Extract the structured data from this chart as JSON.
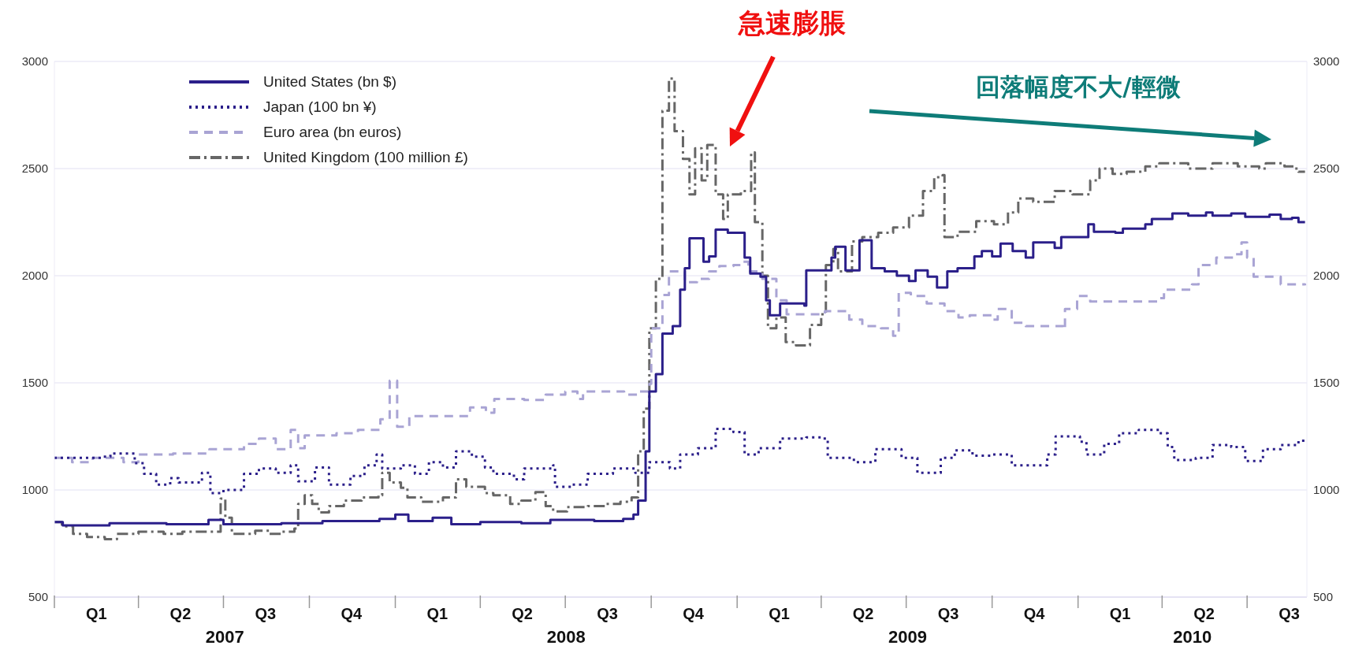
{
  "chart_data": {
    "type": "step",
    "xlim": [
      "2007-01-01",
      "2010-09-03"
    ],
    "xticks": [
      {
        "value": "2007-01-01",
        "label": null
      },
      {
        "value": "2007-02-15",
        "label": "Q1"
      },
      {
        "value": "2007-04-01",
        "label": null
      },
      {
        "value": "2007-05-16",
        "label": "Q2"
      },
      {
        "value": "2007-07-01",
        "label": null
      },
      {
        "value": "2007-08-15",
        "label": "Q3"
      },
      {
        "value": "2007-10-01",
        "label": null
      },
      {
        "value": "2007-11-15",
        "label": "Q4"
      },
      {
        "value": "2008-01-01",
        "label": null
      },
      {
        "value": "2008-02-15",
        "label": "Q1"
      },
      {
        "value": "2008-04-01",
        "label": null
      },
      {
        "value": "2008-05-16",
        "label": "Q2"
      },
      {
        "value": "2008-07-01",
        "label": null
      },
      {
        "value": "2008-08-15",
        "label": "Q3"
      },
      {
        "value": "2008-10-01",
        "label": null
      },
      {
        "value": "2008-11-15",
        "label": "Q4"
      },
      {
        "value": "2009-01-01",
        "label": null
      },
      {
        "value": "2009-02-15",
        "label": "Q1"
      },
      {
        "value": "2009-04-01",
        "label": null
      },
      {
        "value": "2009-05-16",
        "label": "Q2"
      },
      {
        "value": "2009-07-01",
        "label": null
      },
      {
        "value": "2009-08-15",
        "label": "Q3"
      },
      {
        "value": "2009-10-01",
        "label": null
      },
      {
        "value": "2009-11-15",
        "label": "Q4"
      },
      {
        "value": "2010-01-01",
        "label": null
      },
      {
        "value": "2010-02-15",
        "label": "Q1"
      },
      {
        "value": "2010-04-01",
        "label": null
      },
      {
        "value": "2010-05-16",
        "label": "Q2"
      },
      {
        "value": "2010-07-01",
        "label": null
      },
      {
        "value": "2010-08-15",
        "label": "Q3"
      }
    ],
    "ylim": [
      500,
      3000
    ],
    "yticks": [
      500,
      1000,
      1500,
      2000,
      2500,
      3000
    ],
    "y2lim": [
      500,
      3000
    ],
    "y2ticks": [
      500,
      1000,
      1500,
      2000,
      2500,
      3000
    ],
    "grid": "y",
    "legend": "top left",
    "annotations": [
      "急速膨脹",
      "回落幅度不大/輕微",
      "2007",
      "2008",
      "2009",
      "2010"
    ],
    "series": [
      {
        "name": "United States (bn $)",
        "color": "#2b1f8a",
        "line_style": "solid",
        "x": [
          "2007-01-01",
          "2007-01-10",
          "2007-03-01",
          "2007-05-01",
          "2007-06-15",
          "2007-07-01",
          "2007-09-01",
          "2007-10-15",
          "2007-12-15",
          "2008-01-01",
          "2008-01-15",
          "2008-02-10",
          "2008-03-01",
          "2008-04-01",
          "2008-05-15",
          "2008-06-15",
          "2008-08-01",
          "2008-09-01",
          "2008-09-12",
          "2008-09-17",
          "2008-09-25",
          "2008-09-29",
          "2008-10-06",
          "2008-10-13",
          "2008-10-24",
          "2008-11-01",
          "2008-11-06",
          "2008-11-11",
          "2008-11-26",
          "2008-12-02",
          "2008-12-09",
          "2008-12-22",
          "2009-01-09",
          "2009-01-15",
          "2009-01-26",
          "2009-02-01",
          "2009-02-05",
          "2009-02-16",
          "2009-03-14",
          "2009-03-16",
          "2009-04-12",
          "2009-04-16",
          "2009-04-27",
          "2009-05-12",
          "2009-05-25",
          "2009-06-08",
          "2009-06-21",
          "2009-07-04",
          "2009-07-11",
          "2009-07-24",
          "2009-08-03",
          "2009-08-14",
          "2009-08-25",
          "2009-09-12",
          "2009-09-20",
          "2009-10-01",
          "2009-10-10",
          "2009-10-23",
          "2009-11-06",
          "2009-11-14",
          "2009-12-07",
          "2009-12-14",
          "2010-01-12",
          "2010-01-18",
          "2010-02-10",
          "2010-02-18",
          "2010-03-14",
          "2010-03-21",
          "2010-04-12",
          "2010-04-29",
          "2010-05-18",
          "2010-05-25",
          "2010-06-14",
          "2010-06-29",
          "2010-07-25",
          "2010-08-06",
          "2010-08-18",
          "2010-08-25",
          "2010-09-01"
        ],
        "values": [
          850,
          835,
          845,
          840,
          860,
          840,
          845,
          855,
          865,
          885,
          855,
          870,
          840,
          850,
          845,
          860,
          855,
          865,
          885,
          950,
          1180,
          1460,
          1540,
          1730,
          1765,
          1935,
          2035,
          2175,
          2065,
          2090,
          2215,
          2200,
          2085,
          2010,
          1995,
          1885,
          1815,
          1870,
          1860,
          2025,
          2085,
          2135,
          2025,
          2165,
          2035,
          2020,
          2000,
          1975,
          2025,
          1995,
          1945,
          2020,
          2035,
          2090,
          2115,
          2090,
          2150,
          2115,
          2085,
          2155,
          2130,
          2180,
          2240,
          2205,
          2200,
          2220,
          2240,
          2265,
          2290,
          2280,
          2295,
          2280,
          2290,
          2275,
          2285,
          2265,
          2270,
          2250,
          2250
        ]
      },
      {
        "name": "Japan (100 bn ¥)",
        "color": "#2b1f8a",
        "line_style": "dotted",
        "x": [
          "2007-01-01",
          "2007-02-20",
          "2007-03-02",
          "2007-03-28",
          "2007-04-07",
          "2007-04-20",
          "2007-05-05",
          "2007-05-14",
          "2007-06-08",
          "2007-06-17",
          "2007-07-01",
          "2007-07-23",
          "2007-08-08",
          "2007-08-26",
          "2007-09-11",
          "2007-09-19",
          "2007-10-07",
          "2007-10-22",
          "2007-11-14",
          "2007-11-29",
          "2007-12-12",
          "2007-12-18",
          "2008-01-07",
          "2008-01-22",
          "2008-02-06",
          "2008-02-21",
          "2008-03-06",
          "2008-03-23",
          "2008-04-06",
          "2008-04-15",
          "2008-05-07",
          "2008-05-18",
          "2008-06-18",
          "2008-06-20",
          "2008-07-07",
          "2008-07-25",
          "2008-08-21",
          "2008-09-14",
          "2008-09-29",
          "2008-10-21",
          "2008-11-01",
          "2008-11-20",
          "2008-12-09",
          "2008-12-28",
          "2009-01-09",
          "2009-01-24",
          "2009-02-16",
          "2009-03-16",
          "2009-04-01",
          "2009-04-08",
          "2009-05-06",
          "2009-05-29",
          "2009-06-26",
          "2009-07-13",
          "2009-08-07",
          "2009-08-22",
          "2009-09-10",
          "2009-10-01",
          "2009-10-22",
          "2009-11-14",
          "2009-11-29",
          "2009-12-08",
          "2010-01-03",
          "2010-01-10",
          "2010-01-29",
          "2010-02-14",
          "2010-03-07",
          "2010-03-29",
          "2010-04-07",
          "2010-04-14",
          "2010-05-07",
          "2010-05-25",
          "2010-06-14",
          "2010-06-29",
          "2010-07-18",
          "2010-08-06",
          "2010-08-25",
          "2010-09-01"
        ],
        "values": [
          1150,
          1155,
          1170,
          1125,
          1075,
          1025,
          1055,
          1035,
          1080,
          985,
          1000,
          1075,
          1100,
          1080,
          1115,
          1040,
          1105,
          1025,
          1065,
          1115,
          1165,
          1100,
          1115,
          1075,
          1130,
          1105,
          1180,
          1155,
          1105,
          1075,
          1050,
          1100,
          1115,
          1015,
          1025,
          1075,
          1100,
          1080,
          1130,
          1100,
          1165,
          1195,
          1285,
          1270,
          1165,
          1195,
          1240,
          1245,
          1240,
          1150,
          1130,
          1190,
          1150,
          1080,
          1150,
          1185,
          1160,
          1165,
          1115,
          1115,
          1165,
          1250,
          1225,
          1165,
          1215,
          1265,
          1280,
          1265,
          1200,
          1140,
          1150,
          1210,
          1200,
          1135,
          1190,
          1210,
          1230,
          1230
        ]
      },
      {
        "name": "Euro area (bn euros)",
        "color": "#a9a4d4",
        "line_style": "dashed",
        "x": [
          "2007-01-01",
          "2007-01-20",
          "2007-02-11",
          "2007-03-16",
          "2007-04-01",
          "2007-05-08",
          "2007-06-16",
          "2007-07-23",
          "2007-08-08",
          "2007-08-26",
          "2007-09-11",
          "2007-09-19",
          "2007-09-26",
          "2007-10-30",
          "2007-11-22",
          "2007-12-16",
          "2007-12-26",
          "2008-01-03",
          "2008-01-16",
          "2008-03-21",
          "2008-04-07",
          "2008-04-16",
          "2008-05-18",
          "2008-06-10",
          "2008-07-01",
          "2008-07-14",
          "2008-07-20",
          "2008-09-02",
          "2008-09-17",
          "2008-09-29",
          "2008-10-01",
          "2008-10-13",
          "2008-10-20",
          "2008-11-06",
          "2008-11-19",
          "2008-12-02",
          "2008-12-13",
          "2008-12-28",
          "2009-01-05",
          "2009-01-13",
          "2009-01-28",
          "2009-02-12",
          "2009-02-23",
          "2009-04-05",
          "2009-05-01",
          "2009-05-15",
          "2009-06-04",
          "2009-06-17",
          "2009-06-23",
          "2009-07-06",
          "2009-07-23",
          "2009-08-11",
          "2009-08-26",
          "2009-09-07",
          "2009-10-01",
          "2009-10-07",
          "2009-10-22",
          "2009-11-06",
          "2009-12-16",
          "2009-12-18",
          "2009-12-31",
          "2010-01-14",
          "2010-03-29",
          "2010-04-03",
          "2010-05-03",
          "2010-05-10",
          "2010-05-29",
          "2010-06-18",
          "2010-06-25",
          "2010-07-01",
          "2010-07-08",
          "2010-08-06",
          "2010-09-01"
        ],
        "values": [
          1150,
          1130,
          1150,
          1130,
          1165,
          1170,
          1190,
          1215,
          1240,
          1190,
          1280,
          1195,
          1255,
          1265,
          1280,
          1330,
          1510,
          1295,
          1345,
          1385,
          1360,
          1425,
          1420,
          1445,
          1460,
          1425,
          1460,
          1445,
          1460,
          1495,
          1755,
          1910,
          2020,
          1970,
          1985,
          2020,
          2045,
          2050,
          2065,
          2020,
          1985,
          1885,
          1820,
          1835,
          1795,
          1765,
          1755,
          1720,
          1920,
          1905,
          1870,
          1835,
          1805,
          1815,
          1795,
          1845,
          1780,
          1765,
          1750,
          1845,
          1905,
          1880,
          1895,
          1935,
          1960,
          2050,
          2085,
          2100,
          2155,
          2085,
          1995,
          1960,
          1955
        ]
      },
      {
        "name": "United Kingdom (100 million £)",
        "color": "#666666",
        "line_style": "dashdot",
        "x": [
          "2007-01-01",
          "2007-01-09",
          "2007-01-21",
          "2007-02-05",
          "2007-02-24",
          "2007-03-09",
          "2007-04-01",
          "2007-04-28",
          "2007-05-18",
          "2007-06-28",
          "2007-07-03",
          "2007-07-10",
          "2007-08-04",
          "2007-08-19",
          "2007-09-01",
          "2007-09-15",
          "2007-09-19",
          "2007-09-26",
          "2007-10-04",
          "2007-10-11",
          "2007-10-22",
          "2007-11-07",
          "2007-11-26",
          "2007-12-14",
          "2007-12-18",
          "2007-12-26",
          "2008-01-07",
          "2008-01-14",
          "2008-01-29",
          "2008-02-21",
          "2008-03-06",
          "2008-03-17",
          "2008-04-06",
          "2008-04-15",
          "2008-05-03",
          "2008-05-15",
          "2008-05-30",
          "2008-06-10",
          "2008-06-18",
          "2008-07-03",
          "2008-07-25",
          "2008-08-14",
          "2008-08-29",
          "2008-09-10",
          "2008-09-17",
          "2008-09-23",
          "2008-09-29",
          "2008-10-06",
          "2008-10-13",
          "2008-10-20",
          "2008-10-26",
          "2008-11-04",
          "2008-11-11",
          "2008-11-17",
          "2008-11-24",
          "2008-11-30",
          "2008-12-09",
          "2008-12-17",
          "2008-12-22",
          "2009-01-05",
          "2009-01-16",
          "2009-01-20",
          "2009-01-28",
          "2009-02-03",
          "2009-02-12",
          "2009-02-22",
          "2009-03-05",
          "2009-03-20",
          "2009-04-01",
          "2009-04-06",
          "2009-04-14",
          "2009-04-19",
          "2009-05-04",
          "2009-05-15",
          "2009-06-01",
          "2009-06-17",
          "2009-07-04",
          "2009-07-19",
          "2009-07-31",
          "2009-08-09",
          "2009-08-11",
          "2009-08-25",
          "2009-09-14",
          "2009-10-03",
          "2009-10-18",
          "2009-10-29",
          "2009-11-14",
          "2009-12-07",
          "2009-12-26",
          "2010-01-14",
          "2010-01-24",
          "2010-02-07",
          "2010-02-22",
          "2010-03-14",
          "2010-03-29",
          "2010-04-29",
          "2010-05-25",
          "2010-06-21",
          "2010-07-14",
          "2010-07-21",
          "2010-08-10",
          "2010-08-21",
          "2010-08-25",
          "2010-09-01"
        ],
        "values": [
          850,
          830,
          795,
          780,
          770,
          795,
          805,
          795,
          805,
          960,
          870,
          795,
          810,
          795,
          805,
          820,
          935,
          975,
          935,
          895,
          925,
          950,
          965,
          975,
          1080,
          1035,
          1010,
          965,
          945,
          965,
          1050,
          1015,
          985,
          975,
          935,
          950,
          990,
          925,
          900,
          920,
          925,
          935,
          945,
          965,
          1180,
          1380,
          1755,
          1985,
          2770,
          2920,
          2675,
          2545,
          2380,
          2595,
          2445,
          2610,
          2380,
          2265,
          2380,
          2395,
          2575,
          2250,
          2000,
          1755,
          1805,
          1690,
          1675,
          1770,
          1820,
          2050,
          2125,
          2020,
          2160,
          2180,
          2200,
          2225,
          2280,
          2395,
          2460,
          2470,
          2180,
          2205,
          2255,
          2240,
          2295,
          2360,
          2345,
          2395,
          2380,
          2445,
          2500,
          2475,
          2485,
          2510,
          2525,
          2500,
          2525,
          2510,
          2500,
          2525,
          2510,
          2500,
          2485,
          2485
        ]
      }
    ]
  }
}
